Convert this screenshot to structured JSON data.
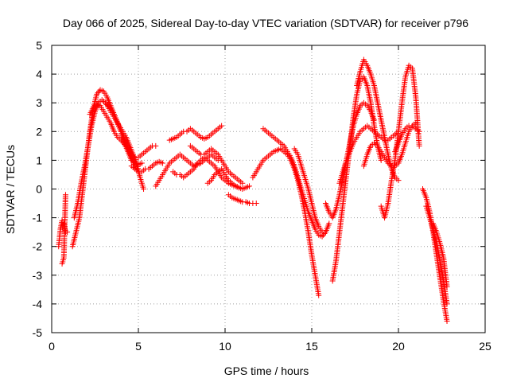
{
  "chart_data": {
    "type": "scatter",
    "title": "Day 066 of 2025, Sidereal Day-to-day VTEC variation (SDTVAR) for receiver p796",
    "xlabel": "GPS time / hours",
    "ylabel": "SDTVAR / TECUs",
    "xlim": [
      0,
      25
    ],
    "ylim": [
      -5,
      5
    ],
    "xticks": [
      0,
      5,
      10,
      15,
      20,
      25
    ],
    "yticks": [
      -5,
      -4,
      -3,
      -2,
      -1,
      0,
      1,
      2,
      3,
      4,
      5
    ],
    "grid": true,
    "marker": "+",
    "series_color": "#ff0000",
    "series": [
      {
        "name": "satellite track",
        "x": [
          0.4,
          0.5,
          0.6,
          0.7,
          0.8,
          0.9
        ],
        "y": [
          -2.0,
          -1.4,
          -1.1,
          -1.2,
          -1.5,
          -1.5
        ]
      },
      {
        "name": "satellite track",
        "x": [
          0.6,
          0.7,
          0.8
        ],
        "y": [
          -2.6,
          -2.4,
          -0.2
        ]
      },
      {
        "name": "satellite track",
        "x": [
          1.2,
          1.4,
          1.6,
          1.8,
          2.0,
          2.2,
          2.4,
          2.6,
          2.8,
          3.0,
          3.2,
          3.4,
          3.6,
          3.8,
          4.0,
          4.2,
          4.4,
          4.6,
          4.8,
          5.0
        ],
        "y": [
          -2.0,
          -1.5,
          -1.0,
          0.0,
          1.0,
          2.0,
          2.8,
          3.3,
          3.45,
          3.4,
          3.2,
          2.9,
          2.6,
          2.3,
          2.0,
          1.7,
          1.4,
          1.1,
          0.8,
          0.6
        ]
      },
      {
        "name": "satellite track",
        "x": [
          1.3,
          1.5,
          1.7,
          1.9,
          2.1,
          2.3,
          2.5,
          2.7,
          2.9,
          3.1,
          3.3,
          3.5,
          3.7,
          3.9,
          4.1,
          4.3,
          4.5,
          4.7,
          4.9,
          5.1,
          5.3
        ],
        "y": [
          -1.0,
          -0.5,
          0.2,
          0.8,
          1.5,
          2.2,
          2.7,
          3.0,
          3.1,
          3.0,
          2.8,
          2.6,
          2.4,
          2.2,
          2.0,
          1.8,
          1.5,
          1.2,
          0.9,
          0.4,
          0.0
        ]
      },
      {
        "name": "satellite track",
        "x": [
          2.2,
          2.4,
          2.6,
          2.8,
          3.0,
          3.2,
          3.4,
          3.6,
          3.8,
          4.0,
          4.2,
          4.4,
          4.6,
          4.8,
          5.0,
          5.2,
          5.4,
          5.6,
          5.8,
          6.0
        ],
        "y": [
          2.6,
          2.85,
          2.95,
          2.9,
          2.7,
          2.5,
          2.3,
          2.0,
          1.8,
          1.7,
          1.55,
          1.35,
          1.2,
          1.1,
          1.1,
          1.2,
          1.3,
          1.4,
          1.5,
          1.5
        ]
      },
      {
        "name": "satellite track",
        "x": [
          3.0,
          3.2,
          3.4,
          3.6,
          3.8,
          4.0,
          4.2,
          4.4,
          4.6,
          4.8,
          5.0,
          5.2
        ],
        "y": [
          3.05,
          2.95,
          2.8,
          2.6,
          2.3,
          2.0,
          1.6,
          1.3,
          1.0,
          0.9,
          0.85,
          0.9
        ]
      },
      {
        "name": "satellite track",
        "x": [
          4.6,
          4.8,
          5.0,
          5.2,
          5.4,
          5.6,
          5.8,
          6.0,
          6.2,
          6.4
        ],
        "y": [
          0.8,
          0.7,
          0.6,
          0.6,
          0.7,
          0.7,
          0.8,
          0.9,
          0.95,
          0.9
        ]
      },
      {
        "name": "satellite track",
        "x": [
          6.0,
          6.2,
          6.4,
          6.6,
          6.8,
          7.0,
          7.2,
          7.4,
          7.6,
          7.8,
          8.0,
          8.2,
          8.4,
          8.6,
          8.8,
          9.0,
          9.2,
          9.4,
          9.6
        ],
        "y": [
          0.1,
          0.3,
          0.5,
          0.7,
          0.9,
          1.0,
          1.1,
          1.2,
          1.1,
          1.0,
          0.9,
          0.8,
          0.85,
          0.9,
          1.0,
          1.1,
          1.2,
          1.1,
          1.0
        ]
      },
      {
        "name": "satellite track",
        "x": [
          6.8,
          7.0,
          7.2,
          7.4,
          7.6,
          7.8,
          8.0,
          8.2,
          8.4,
          8.6,
          8.8,
          9.0,
          9.2,
          9.4,
          9.6,
          9.8
        ],
        "y": [
          1.7,
          1.75,
          1.8,
          1.9,
          2.0,
          2.0,
          2.1,
          2.0,
          1.9,
          1.8,
          1.75,
          1.8,
          1.9,
          2.0,
          2.1,
          2.2
        ]
      },
      {
        "name": "satellite track",
        "x": [
          7.0,
          7.2,
          7.4,
          7.6,
          7.8,
          8.0,
          8.2,
          8.4,
          8.6,
          8.8,
          9.0,
          9.2,
          9.4,
          9.6,
          9.8,
          10.0,
          10.2,
          10.4,
          10.6,
          10.8
        ],
        "y": [
          0.6,
          0.5,
          0.5,
          0.4,
          0.5,
          0.6,
          0.7,
          0.9,
          1.0,
          1.1,
          1.0,
          0.9,
          0.8,
          0.6,
          0.4,
          0.3,
          0.2,
          0.15,
          0.1,
          0.05
        ]
      },
      {
        "name": "satellite track",
        "x": [
          8.0,
          8.2,
          8.4,
          8.6,
          8.8,
          9.0,
          9.2,
          9.4,
          9.6,
          9.8,
          10.0,
          10.2,
          10.4,
          10.6,
          10.8,
          11.0
        ],
        "y": [
          1.5,
          1.4,
          1.3,
          1.2,
          1.2,
          1.3,
          1.4,
          1.3,
          1.2,
          1.0,
          0.8,
          0.6,
          0.5,
          0.4,
          0.3,
          0.2
        ]
      },
      {
        "name": "satellite track",
        "x": [
          9.0,
          9.2,
          9.4,
          9.6,
          9.8,
          10.0,
          10.2,
          10.4,
          10.6,
          10.8,
          11.0,
          11.2,
          11.4
        ],
        "y": [
          0.2,
          0.3,
          0.5,
          0.6,
          0.7,
          0.5,
          0.3,
          0.2,
          0.1,
          0.05,
          0.0,
          0.05,
          0.1
        ]
      },
      {
        "name": "satellite track",
        "x": [
          10.2,
          10.4,
          10.6,
          10.8,
          11.0,
          11.2,
          11.4,
          11.6,
          11.8
        ],
        "y": [
          -0.2,
          -0.3,
          -0.35,
          -0.4,
          -0.45,
          -0.45,
          -0.5,
          -0.5,
          -0.5
        ]
      },
      {
        "name": "satellite track",
        "x": [
          11.6,
          11.8,
          12.0,
          12.2,
          12.4,
          12.6,
          12.8,
          13.0,
          13.2,
          13.4,
          13.6,
          13.8,
          14.0,
          14.2,
          14.4,
          14.6,
          14.8,
          15.0,
          15.2,
          15.4
        ],
        "y": [
          0.4,
          0.6,
          0.8,
          1.0,
          1.1,
          1.2,
          1.3,
          1.35,
          1.4,
          1.3,
          1.2,
          1.0,
          0.7,
          0.3,
          -0.2,
          -0.8,
          -1.5,
          -2.3,
          -3.0,
          -3.7
        ]
      },
      {
        "name": "satellite track",
        "x": [
          12.2,
          12.4,
          12.6,
          12.8,
          13.0,
          13.2,
          13.4,
          13.6,
          13.8,
          14.0,
          14.2,
          14.4,
          14.6,
          14.8,
          15.0,
          15.2,
          15.4,
          15.6,
          15.8,
          16.0
        ],
        "y": [
          2.1,
          2.0,
          1.9,
          1.8,
          1.7,
          1.6,
          1.5,
          1.3,
          1.1,
          0.8,
          0.4,
          0.0,
          -0.4,
          -0.8,
          -1.1,
          -1.4,
          -1.6,
          -1.65,
          -1.5,
          -1.2
        ]
      },
      {
        "name": "satellite track",
        "x": [
          14.0,
          14.2,
          14.4,
          14.6,
          14.8,
          15.0,
          15.2,
          15.4,
          15.6
        ],
        "y": [
          1.4,
          1.2,
          0.8,
          0.4,
          0.0,
          -0.5,
          -1.0,
          -1.3,
          -1.5
        ]
      },
      {
        "name": "satellite track",
        "x": [
          15.8,
          16.0,
          16.2,
          16.4,
          16.6,
          16.8,
          17.0,
          17.2,
          17.4,
          17.6,
          17.8,
          18.0,
          18.2,
          18.4,
          18.6
        ],
        "y": [
          -0.5,
          -0.8,
          -1.0,
          -0.7,
          -0.2,
          0.4,
          1.0,
          1.6,
          2.2,
          2.6,
          2.9,
          3.0,
          2.9,
          2.7,
          2.4
        ]
      },
      {
        "name": "satellite track",
        "x": [
          16.2,
          16.4,
          16.6,
          16.8,
          17.0,
          17.2,
          17.4,
          17.6,
          17.8,
          18.0,
          18.2,
          18.4,
          18.6,
          18.8,
          19.0
        ],
        "y": [
          -3.2,
          -2.5,
          -1.5,
          -0.5,
          0.5,
          1.5,
          2.5,
          3.3,
          3.8,
          3.9,
          3.6,
          3.0,
          2.2,
          1.5,
          1.0
        ]
      },
      {
        "name": "satellite track",
        "x": [
          16.6,
          16.8,
          17.0,
          17.2,
          17.4,
          17.6,
          17.8,
          18.0,
          18.2,
          18.4,
          18.6,
          18.8,
          19.0,
          19.2,
          19.4,
          19.6,
          19.8,
          20.0
        ],
        "y": [
          0.2,
          0.6,
          1.0,
          1.3,
          1.6,
          1.8,
          2.0,
          2.1,
          2.2,
          2.1,
          2.0,
          1.9,
          1.8,
          1.7,
          1.7,
          1.8,
          1.9,
          2.0
        ]
      },
      {
        "name": "satellite track",
        "x": [
          17.6,
          17.8,
          18.0,
          18.2,
          18.4,
          18.6,
          18.8,
          19.0,
          19.2,
          19.4,
          19.6,
          19.8,
          20.0
        ],
        "y": [
          3.6,
          4.1,
          4.5,
          4.3,
          4.0,
          3.6,
          3.0,
          2.4,
          1.8,
          1.2,
          0.7,
          0.4,
          0.3
        ]
      },
      {
        "name": "satellite track",
        "x": [
          18.0,
          18.2,
          18.4,
          18.6,
          18.8,
          19.0,
          19.2,
          19.4,
          19.6,
          19.8,
          20.0,
          20.2,
          20.4,
          20.6,
          20.8,
          21.0
        ],
        "y": [
          0.8,
          1.2,
          1.5,
          1.6,
          1.5,
          1.3,
          1.1,
          0.9,
          0.8,
          0.8,
          0.9,
          1.2,
          1.6,
          2.0,
          2.2,
          2.3
        ]
      },
      {
        "name": "satellite track",
        "x": [
          19.0,
          19.2,
          19.4,
          19.6,
          19.8,
          20.0,
          20.2,
          20.4,
          20.6,
          20.8,
          21.0,
          21.2
        ],
        "y": [
          -0.6,
          -1.0,
          -0.5,
          0.3,
          1.0,
          2.0,
          3.0,
          3.9,
          4.3,
          4.2,
          3.2,
          1.5
        ]
      },
      {
        "name": "satellite track",
        "x": [
          19.8,
          20.0,
          20.2,
          20.4,
          20.6,
          20.8,
          21.0,
          21.2
        ],
        "y": [
          1.3,
          1.6,
          1.9,
          2.1,
          2.2,
          2.2,
          2.1,
          2.0
        ]
      },
      {
        "name": "satellite track",
        "x": [
          21.4,
          21.6,
          21.8,
          22.0,
          22.2,
          22.4,
          22.6,
          22.8
        ],
        "y": [
          0.0,
          -0.3,
          -0.8,
          -1.5,
          -2.3,
          -3.1,
          -3.9,
          -4.6
        ]
      },
      {
        "name": "satellite track",
        "x": [
          21.6,
          21.8,
          22.0,
          22.2,
          22.4,
          22.6,
          22.8
        ],
        "y": [
          -0.6,
          -1.0,
          -1.4,
          -1.9,
          -2.5,
          -3.2,
          -4.0
        ]
      },
      {
        "name": "satellite track",
        "x": [
          22.0,
          22.2,
          22.4,
          22.6,
          22.8
        ],
        "y": [
          -1.2,
          -1.5,
          -1.9,
          -2.4,
          -3.4
        ]
      }
    ]
  }
}
